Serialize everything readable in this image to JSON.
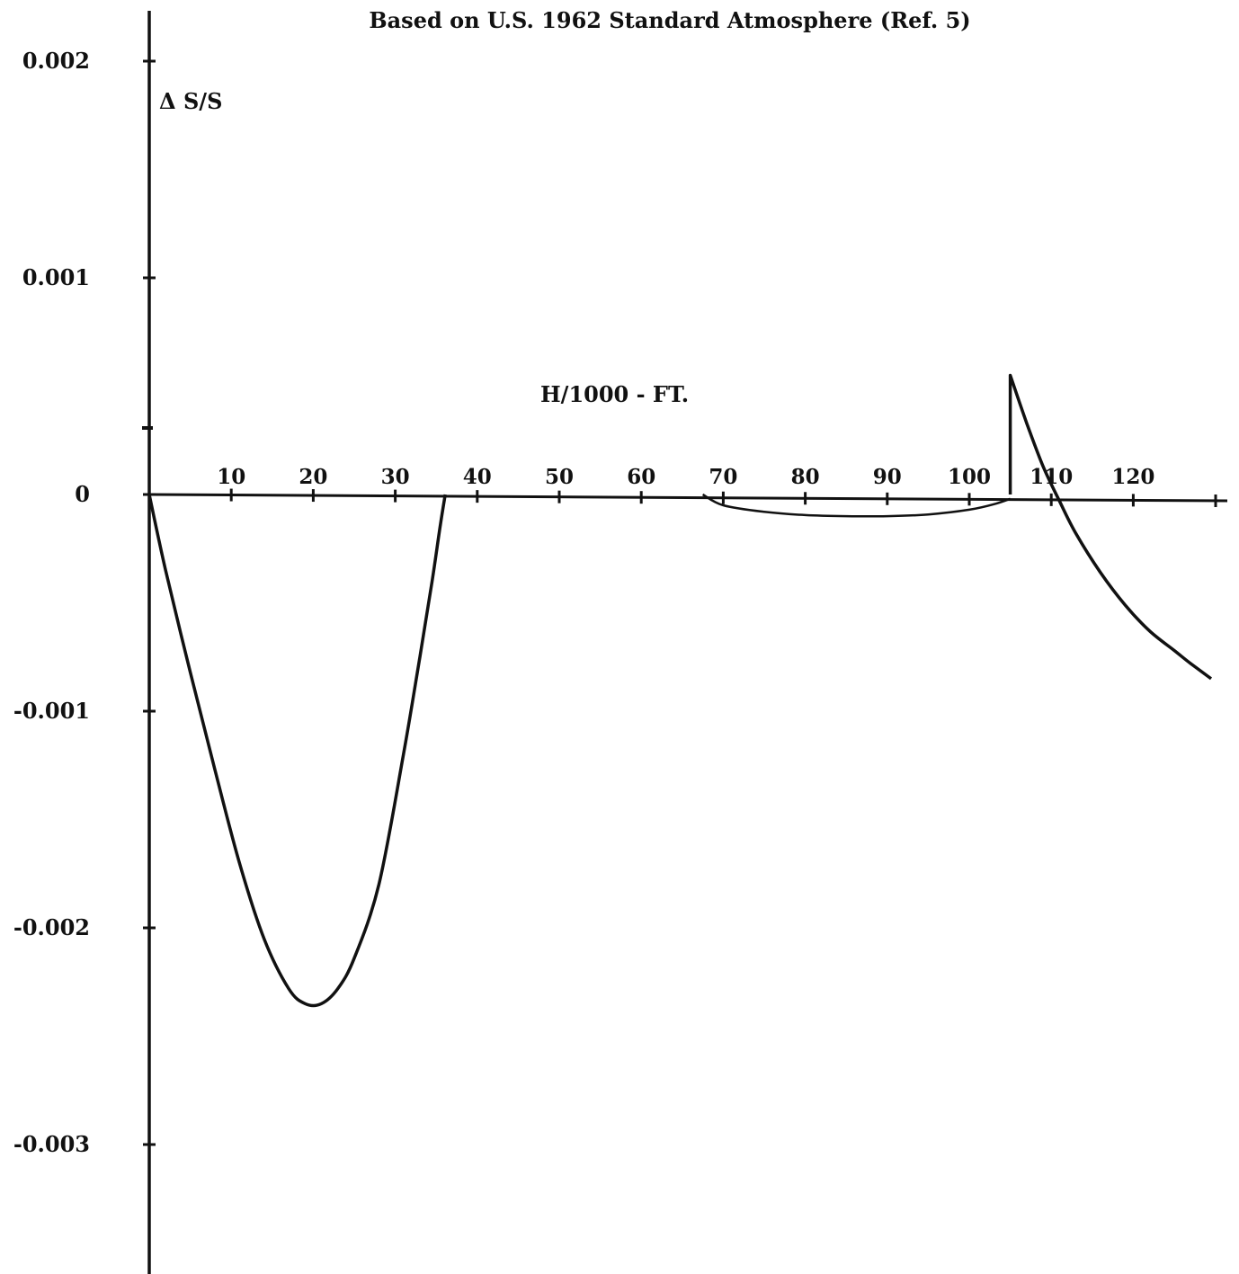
{
  "chart_data": {
    "type": "line",
    "title": "Based on U.S. 1962 Standard Atmosphere (Ref. 5)",
    "xlabel": "H/1000 - FT.",
    "ylabel": "Δ S/S",
    "xlim": [
      0,
      130
    ],
    "ylim": [
      -0.0035,
      0.0022
    ],
    "grid": false,
    "legend": "none",
    "x_ticks": [
      {
        "value": 10,
        "label": "10"
      },
      {
        "value": 20,
        "label": "20"
      },
      {
        "value": 30,
        "label": "30"
      },
      {
        "value": 40,
        "label": "40"
      },
      {
        "value": 50,
        "label": "50"
      },
      {
        "value": 60,
        "label": "60"
      },
      {
        "value": 70,
        "label": "70"
      },
      {
        "value": 80,
        "label": "80"
      },
      {
        "value": 90,
        "label": "90"
      },
      {
        "value": 100,
        "label": "100"
      },
      {
        "value": 110,
        "label": "110"
      },
      {
        "value": 120,
        "label": "120"
      }
    ],
    "y_ticks": [
      {
        "value": 0.002,
        "label": "0.002"
      },
      {
        "value": 0.001,
        "label": "0.001"
      },
      {
        "value": 0,
        "label": "0"
      },
      {
        "value": -0.001,
        "label": "-0.001"
      },
      {
        "value": -0.002,
        "label": "-0.002"
      },
      {
        "value": -0.003,
        "label": "-0.003"
      }
    ],
    "series": [
      {
        "x": [
          0,
          2,
          5,
          8,
          11,
          14,
          17,
          19,
          21,
          23,
          25,
          28,
          31,
          33,
          34.5,
          35.5,
          36.1
        ],
        "y": [
          0,
          -0.00035,
          -0.00082,
          -0.00127,
          -0.0017,
          -0.00205,
          -0.00228,
          -0.00235,
          -0.00235,
          -0.00228,
          -0.00214,
          -0.0018,
          -0.0012,
          -0.00075,
          -0.0004,
          -0.00014,
          0
        ]
      },
      {
        "x": [
          67.5,
          70,
          75,
          80,
          85,
          90,
          95,
          100,
          103,
          105
        ],
        "y": [
          0,
          -5e-05,
          -8e-05,
          -9.5e-05,
          -0.0001,
          -0.0001,
          -9.2e-05,
          -7e-05,
          -4.5e-05,
          -2e-05
        ]
      },
      {
        "x": [
          105,
          105,
          107,
          109,
          111,
          113,
          116,
          119,
          122,
          125,
          127,
          129.5
        ],
        "y": [
          0,
          0.00055,
          0.00033,
          0.00013,
          -3e-05,
          -0.00018,
          -0.00036,
          -0.00051,
          -0.00063,
          -0.00072,
          -0.00078,
          -0.00085
        ]
      }
    ]
  }
}
